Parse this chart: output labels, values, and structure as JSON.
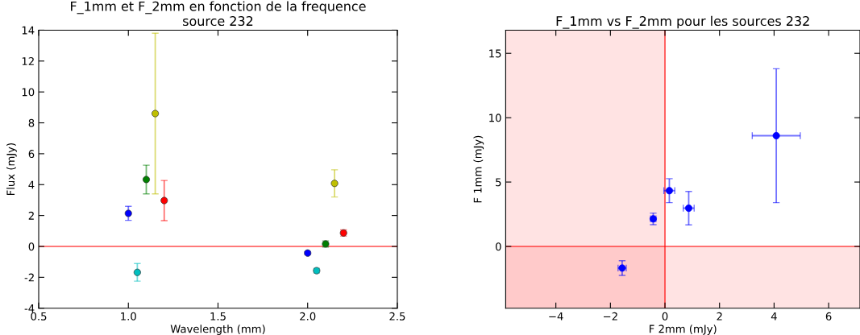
{
  "chart_data": [
    {
      "type": "scatter",
      "title": "F_1mm et F_2mm en fonction de la frequence\nsource 232",
      "xlabel": "Wavelength (mm)",
      "ylabel": "Flux (mJy)",
      "marker": "circle",
      "grid": false,
      "legend": false,
      "xlim": [
        0.5,
        2.5
      ],
      "xticks": [
        0.5,
        {
          "value": 1,
          "label": "1.0"
        },
        1.5,
        {
          "value": 2,
          "label": "2.0"
        },
        2.5
      ],
      "ylim": [
        -4,
        14
      ],
      "yticks": [
        {
          "value": -4,
          "label": "-4"
        },
        {
          "value": -2,
          "label": "-2"
        },
        0,
        2,
        4,
        6,
        8,
        10,
        12,
        14
      ],
      "ref_lines": [
        {
          "axis": "y",
          "value": 0,
          "color": "#ff0000"
        }
      ],
      "series": [
        {
          "color": "#0000ff",
          "x": [
            1.0,
            2.0
          ],
          "values": [
            2.14,
            -0.43
          ],
          "errors": [
            0.45,
            0.1
          ]
        },
        {
          "color": "#00bfbf",
          "x": [
            1.05,
            2.05
          ],
          "values": [
            -1.68,
            -1.57
          ],
          "errors": [
            0.57,
            0.15
          ]
        },
        {
          "color": "#008000",
          "x": [
            1.1,
            2.1
          ],
          "values": [
            4.33,
            0.16
          ],
          "errors": [
            0.93,
            0.2
          ]
        },
        {
          "color": "#bfbf00",
          "x": [
            1.15,
            2.15
          ],
          "values": [
            8.6,
            4.08
          ],
          "errors": [
            5.2,
            0.88
          ]
        },
        {
          "color": "#ff0000",
          "x": [
            1.2,
            2.2
          ],
          "values": [
            2.97,
            0.87
          ],
          "errors": [
            1.3,
            0.2
          ]
        }
      ]
    },
    {
      "type": "scatter",
      "title": "F_1mm vs F_2mm pour les sources 232",
      "xlabel": "F 2mm (mJy)",
      "ylabel": "F 1mm (mJy)",
      "marker": "circle",
      "grid": false,
      "legend": false,
      "xlim": [
        -5.84,
        7.15
      ],
      "xticks": [
        {
          "value": -4,
          "label": "−4"
        },
        {
          "value": -2,
          "label": "−2"
        },
        0,
        2,
        4,
        6
      ],
      "ylim": [
        -4.8,
        16.8
      ],
      "yticks": [
        0,
        5,
        10,
        15
      ],
      "bands": [
        {
          "axis": "x",
          "from": -5.84,
          "to": 0,
          "color": "#ff0000"
        },
        {
          "axis": "y",
          "from": -4.8,
          "to": 0,
          "color": "#ff0000"
        }
      ],
      "ref_lines": [
        {
          "axis": "x",
          "value": 0,
          "color": "#ff0000"
        },
        {
          "axis": "y",
          "value": 0,
          "color": "#ff0000"
        }
      ],
      "series": [
        {
          "color": "#0000ff",
          "x": [
            -1.57,
            -0.43,
            0.16,
            4.08,
            0.87
          ],
          "values": [
            -1.68,
            2.14,
            4.33,
            8.6,
            2.97
          ],
          "errors": [
            0.57,
            0.45,
            0.93,
            5.2,
            1.3
          ],
          "xerrors": [
            0.15,
            0.1,
            0.2,
            0.88,
            0.2
          ]
        }
      ]
    }
  ]
}
